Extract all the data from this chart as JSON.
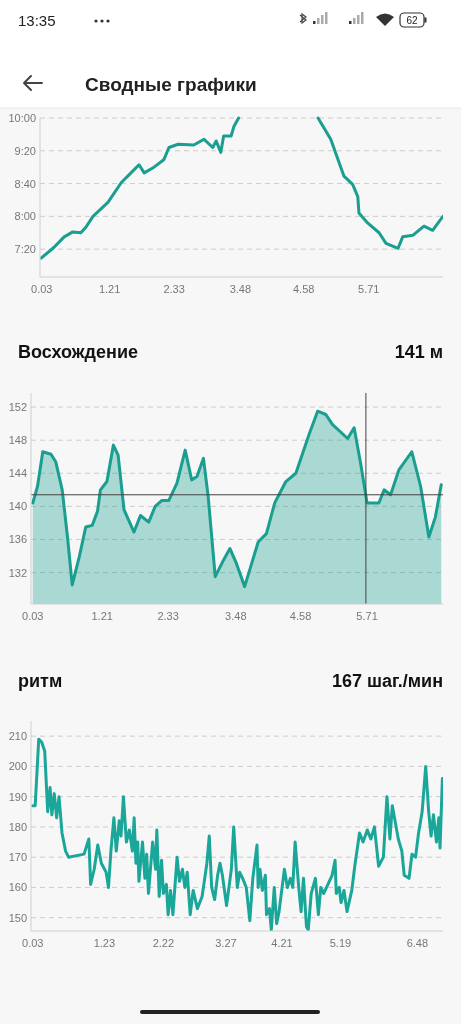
{
  "chart_data": [
    {
      "type": "line",
      "title": "Сводные графики",
      "annotations": [
        "13:35",
        "62"
      ],
      "color": "#1a9e8f",
      "grid": "y",
      "x": [
        0.02,
        0.24,
        0.42,
        0.57,
        0.71,
        0.8,
        0.92,
        1.18,
        1.41,
        1.58,
        1.72,
        1.81,
        1.98,
        2.15,
        2.24,
        2.4,
        2.67,
        2.85,
        3.0,
        3.06,
        3.14,
        3.19,
        3.32,
        3.37,
        3.45,
        4.1,
        4.83,
        5.05,
        5.28,
        5.43,
        5.52,
        5.54,
        5.69,
        5.89,
        6.01,
        6.22,
        6.3,
        6.48,
        6.67,
        6.82,
        7.0
      ],
      "values": [
        429,
        442,
        455,
        461,
        460,
        467,
        480,
        497,
        521,
        533,
        543,
        533,
        540,
        549,
        564,
        568,
        567,
        574,
        564,
        572,
        558,
        578,
        578,
        590,
        600,
        null,
        600,
        574,
        529,
        519,
        504,
        484,
        472,
        460,
        447,
        441,
        455,
        457,
        468,
        463,
        480
      ],
      "xlim": [
        0,
        7
      ],
      "xticks": [
        0.03,
        1.21,
        2.33,
        3.48,
        4.58,
        5.71
      ],
      "ylim": [
        406,
        600
      ],
      "yticks": [
        {
          "value": 440,
          "label": "7:20"
        },
        {
          "value": 480,
          "label": "8:00"
        },
        {
          "value": 520,
          "label": "8:40"
        },
        {
          "value": 560,
          "label": "9:20"
        },
        {
          "value": 600,
          "label": "10:00"
        }
      ]
    },
    {
      "type": "area",
      "title": "Восхождение",
      "subtitle": "141 м",
      "color": "#1a9e8f",
      "grid": "y",
      "x": [
        0.03,
        0.11,
        0.2,
        0.34,
        0.42,
        0.53,
        0.62,
        0.7,
        0.82,
        0.93,
        1.04,
        1.13,
        1.18,
        1.29,
        1.4,
        1.48,
        1.58,
        1.75,
        1.86,
        2.0,
        2.11,
        2.22,
        2.34,
        2.48,
        2.62,
        2.73,
        2.82,
        2.93,
        3.01,
        3.13,
        3.27,
        3.38,
        3.49,
        3.63,
        3.86,
        4.0,
        4.14,
        4.33,
        4.5,
        4.73,
        4.87,
        5.01,
        5.12,
        5.38,
        5.49,
        5.6,
        5.71,
        5.91,
        6.0,
        6.11,
        6.25,
        6.47,
        6.62,
        6.76,
        6.87,
        6.97
      ],
      "values": [
        140.4,
        142.4,
        146.6,
        146.3,
        145.4,
        142,
        136.3,
        130.5,
        133.9,
        137.5,
        137.7,
        139.4,
        142,
        143,
        147.4,
        146.2,
        139.6,
        136.9,
        138.9,
        138.1,
        140,
        140.7,
        140.7,
        142.8,
        146.8,
        143.2,
        143.6,
        145.8,
        141.2,
        131.5,
        133.5,
        134.9,
        133.1,
        130.3,
        135.7,
        136.7,
        140.4,
        143,
        144,
        148.8,
        151.5,
        151.1,
        149.9,
        148.2,
        149.5,
        145.2,
        140.4,
        140.4,
        142,
        141.4,
        144.4,
        146.6,
        142.4,
        136.3,
        138.7,
        142.6
      ],
      "xlim": [
        0,
        7
      ],
      "xticks": [
        0.03,
        1.21,
        2.33,
        3.48,
        4.58,
        5.71
      ],
      "ylim": [
        128.2,
        153.7
      ],
      "yticks": [
        132,
        136,
        140,
        144,
        148,
        152
      ],
      "ref_lines": [
        {
          "axis": "y",
          "value": 141.4,
          "color": "#444444"
        },
        {
          "axis": "x",
          "value": 5.69,
          "color": "#444444"
        }
      ]
    },
    {
      "type": "line",
      "title": "ритм",
      "subtitle": "167 шаг./мин",
      "color": "#1aa79a",
      "grid": "y",
      "x": [
        0.03,
        0.07,
        0.13,
        0.18,
        0.23,
        0.28,
        0.32,
        0.35,
        0.39,
        0.43,
        0.47,
        0.52,
        0.58,
        0.63,
        0.89,
        0.97,
        1.0,
        1.06,
        1.12,
        1.18,
        1.26,
        1.3,
        1.34,
        1.39,
        1.43,
        1.48,
        1.51,
        1.55,
        1.6,
        1.65,
        1.7,
        1.73,
        1.76,
        1.79,
        1.81,
        1.87,
        1.91,
        1.94,
        1.97,
        2.04,
        2.09,
        2.11,
        2.15,
        2.19,
        2.22,
        2.27,
        2.3,
        2.34,
        2.38,
        2.45,
        2.49,
        2.54,
        2.58,
        2.62,
        2.67,
        2.72,
        2.79,
        2.87,
        2.95,
        2.99,
        3.03,
        3.08,
        3.13,
        3.17,
        3.21,
        3.28,
        3.36,
        3.4,
        3.46,
        3.5,
        3.55,
        3.61,
        3.67,
        3.72,
        3.79,
        3.81,
        3.84,
        3.88,
        3.93,
        3.95,
        4.0,
        4.03,
        4.08,
        4.12,
        4.16,
        4.25,
        4.3,
        4.35,
        4.39,
        4.43,
        4.49,
        4.53,
        4.57,
        4.62,
        4.65,
        4.7,
        4.77,
        4.82,
        4.86,
        4.91,
        5.05,
        5.1,
        5.12,
        5.17,
        5.2,
        5.25,
        5.3,
        5.38,
        5.43,
        5.51,
        5.57,
        5.64,
        5.7,
        5.76,
        5.83,
        5.91,
        5.97,
        6.02,
        6.06,
        6.16,
        6.22,
        6.26,
        6.34,
        6.39,
        6.45,
        6.5,
        6.56,
        6.62,
        6.67,
        6.71,
        6.75,
        6.8,
        6.84,
        6.86,
        6.9
      ],
      "values": [
        187,
        187,
        209,
        208,
        205,
        185,
        193,
        184,
        191,
        183,
        190,
        178,
        172,
        170,
        171,
        176,
        161,
        166,
        174,
        168,
        165,
        160,
        172,
        183,
        172,
        182,
        177,
        190,
        175,
        179,
        172,
        183,
        168,
        175,
        162,
        175,
        163,
        171,
        158,
        175,
        166,
        179,
        157,
        169,
        158,
        161,
        151,
        159,
        151,
        170,
        162,
        166,
        160,
        165,
        151,
        159,
        153,
        157,
        168,
        177,
        160,
        156,
        164,
        168,
        164,
        154,
        166,
        180,
        160,
        165,
        163,
        160,
        149,
        163,
        174,
        160,
        166,
        159,
        164,
        151,
        153,
        146,
        160,
        148,
        152,
        166,
        160,
        163,
        160,
        175,
        160,
        152,
        163,
        147,
        146,
        158,
        163,
        151,
        160,
        158,
        164,
        169,
        158,
        160,
        155,
        159,
        152,
        159,
        167,
        178,
        175,
        179,
        176,
        180,
        167,
        170,
        190,
        176,
        187,
        176,
        172,
        164,
        163,
        171,
        170,
        178,
        185,
        200,
        185,
        177,
        184,
        175,
        183,
        173,
        196
      ],
      "xlim": [
        0,
        6.91
      ],
      "xticks": [
        0.03,
        1.23,
        2.22,
        3.27,
        4.21,
        5.19,
        6.48
      ],
      "ylim": [
        145.6,
        215
      ],
      "yticks": [
        150,
        160,
        170,
        180,
        190,
        200,
        210
      ]
    }
  ]
}
